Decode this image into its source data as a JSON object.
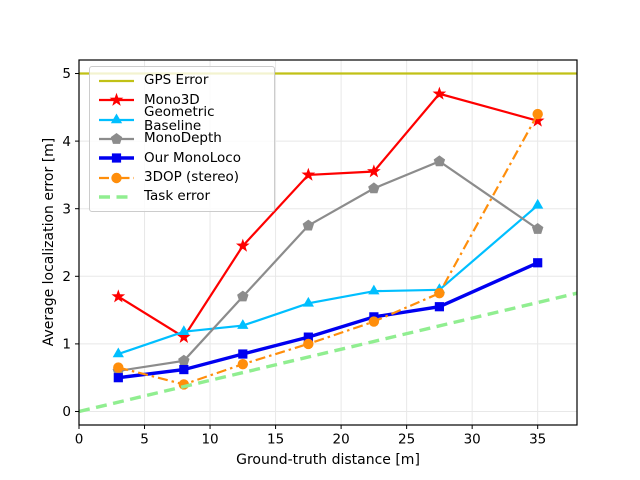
{
  "figure": {
    "background": "#ffffff",
    "border_color": "#000000",
    "grid_color": "#e8e8e8",
    "legend_background": "rgba(255,255,255,0.8)",
    "legend_border": "#cccccc"
  },
  "chart_data": {
    "type": "line",
    "title": "",
    "xlabel": "Ground-truth distance [m]",
    "ylabel": "Average localization error [m]",
    "xlim": [
      0,
      38
    ],
    "ylim": [
      -0.2,
      5.2
    ],
    "xticks": [
      0,
      5,
      10,
      15,
      20,
      25,
      30,
      35
    ],
    "yticks": [
      0,
      1,
      2,
      3,
      4,
      5
    ],
    "grid": true,
    "legend_position": "upper-left",
    "x": [
      3,
      8,
      12.5,
      17.5,
      22.5,
      27.5,
      35
    ],
    "series": [
      {
        "name": "GPS Error",
        "color": "#c1c116",
        "linestyle": "solid",
        "marker": "none",
        "linewidth": 2.2,
        "x": [
          0,
          38
        ],
        "values": [
          5.0,
          5.0
        ]
      },
      {
        "name": "Mono3D",
        "color": "#fe0000",
        "linestyle": "solid",
        "marker": "star",
        "linewidth": 2.2,
        "values": [
          1.7,
          1.1,
          2.45,
          3.5,
          3.55,
          4.7,
          4.3
        ]
      },
      {
        "name": "Geometric Baseline",
        "color": "#00bfff",
        "linestyle": "solid",
        "marker": "triangle",
        "linewidth": 2.2,
        "values": [
          0.85,
          1.18,
          1.27,
          1.6,
          1.78,
          1.8,
          3.05
        ]
      },
      {
        "name": "MonoDepth",
        "color": "#8c8c8c",
        "linestyle": "solid",
        "marker": "pentagon",
        "linewidth": 2.2,
        "values": [
          0.6,
          0.75,
          1.7,
          2.75,
          3.3,
          3.7,
          2.7
        ]
      },
      {
        "name": "Our MonoLoco",
        "color": "#0000f0",
        "linestyle": "solid",
        "marker": "square",
        "linewidth": 3.4,
        "values": [
          0.5,
          0.62,
          0.85,
          1.1,
          1.4,
          1.55,
          2.2
        ]
      },
      {
        "name": "3DOP (stereo)",
        "color": "#ff8e0b",
        "linestyle": "dashdot",
        "marker": "circle",
        "linewidth": 2.2,
        "values": [
          0.65,
          0.4,
          0.7,
          1.0,
          1.33,
          1.75,
          4.4
        ]
      },
      {
        "name": "Task error",
        "color": "#90ee90",
        "linestyle": "dashed",
        "marker": "none",
        "linewidth": 3.4,
        "x": [
          0,
          38
        ],
        "values": [
          0.0,
          1.75
        ]
      }
    ]
  }
}
